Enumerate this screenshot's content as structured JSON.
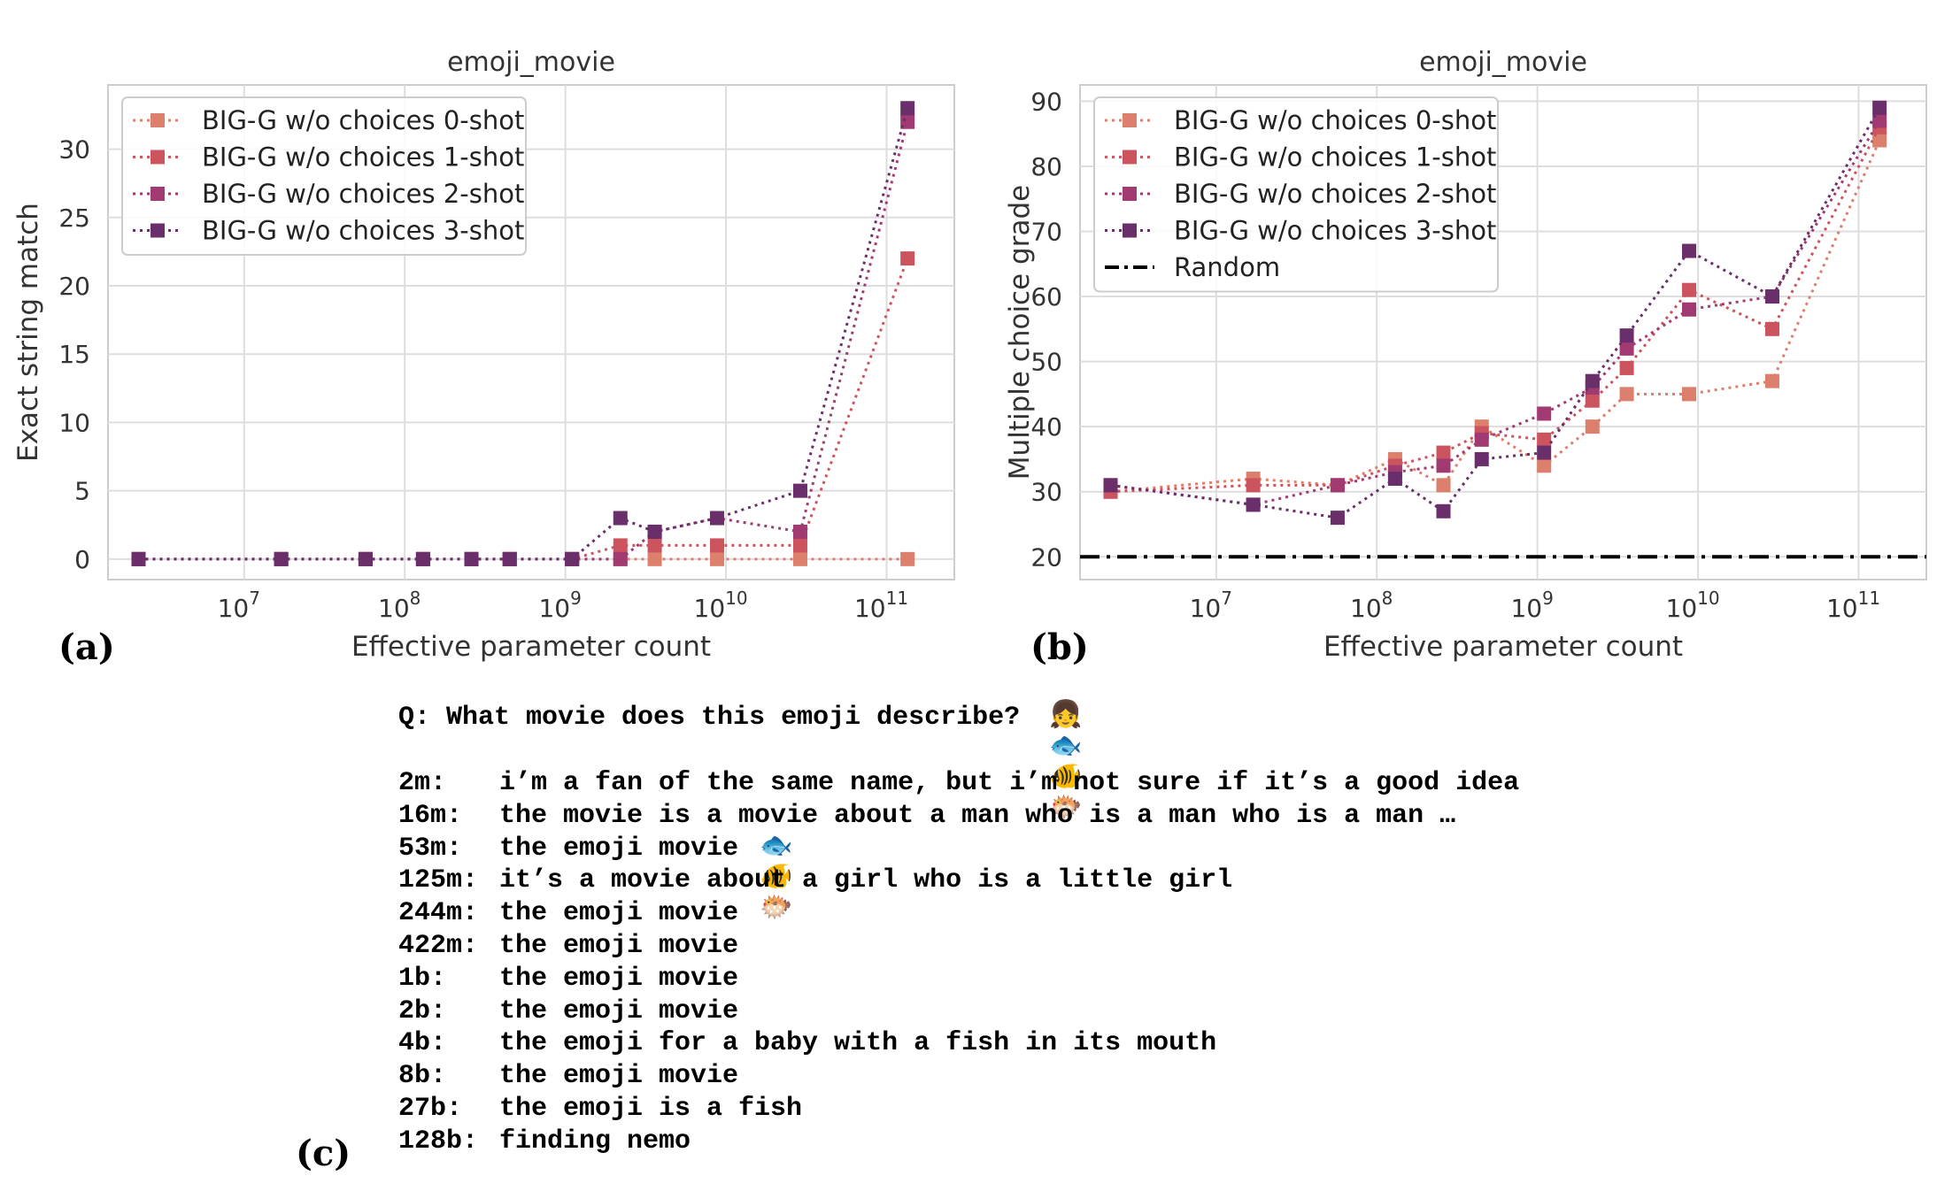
{
  "chart_data": [
    {
      "type": "line",
      "title": "emoji_movie",
      "xlabel": "Effective parameter count",
      "ylabel": "Exact string match",
      "xscale": "log",
      "ylim": [
        -1.5,
        34.7
      ],
      "yticks": [
        0,
        5,
        10,
        15,
        20,
        25,
        30
      ],
      "xticks": [
        {
          "value": 10000000.0,
          "base": "10",
          "exp": "7"
        },
        {
          "value": 100000000.0,
          "base": "10",
          "exp": "8"
        },
        {
          "value": 1000000000.0,
          "base": "10",
          "exp": "9"
        },
        {
          "value": 10000000000.0,
          "base": "10",
          "exp": "10"
        },
        {
          "value": 100000000000.0,
          "base": "10",
          "exp": "11"
        }
      ],
      "grid": true,
      "legend_position": "top-left",
      "series": [
        {
          "name": "BIG-G w/o choices 0-shot",
          "color": "#dc7f6c",
          "x": [
            2200000.0,
            17000000.0,
            57000000.0,
            130000000.0,
            260000000.0,
            450000000.0,
            1100000000.0,
            2200000000.0,
            3600000000.0,
            8800000000.0,
            29000000000.0,
            135000000000.0
          ],
          "y": [
            0,
            0,
            0,
            0,
            0,
            0,
            0,
            0,
            0,
            0,
            0,
            0
          ]
        },
        {
          "name": "BIG-G w/o choices 1-shot",
          "color": "#cc545f",
          "x": [
            2200000.0,
            17000000.0,
            57000000.0,
            130000000.0,
            260000000.0,
            450000000.0,
            1100000000.0,
            2200000000.0,
            3600000000.0,
            8800000000.0,
            29000000000.0,
            135000000000.0
          ],
          "y": [
            0,
            0,
            0,
            0,
            0,
            0,
            0,
            1,
            1,
            1,
            1,
            22
          ]
        },
        {
          "name": "BIG-G w/o choices 2-shot",
          "color": "#a23a72",
          "x": [
            2200000.0,
            17000000.0,
            57000000.0,
            130000000.0,
            260000000.0,
            450000000.0,
            1100000000.0,
            2200000000.0,
            3600000000.0,
            8800000000.0,
            29000000000.0,
            135000000000.0
          ],
          "y": [
            0,
            0,
            0,
            0,
            0,
            0,
            0,
            0,
            2,
            3,
            2,
            32
          ]
        },
        {
          "name": "BIG-G w/o choices 3-shot",
          "color": "#6a2e6b",
          "x": [
            2200000.0,
            17000000.0,
            57000000.0,
            130000000.0,
            260000000.0,
            450000000.0,
            1100000000.0,
            2200000000.0,
            3600000000.0,
            8800000000.0,
            29000000000.0,
            135000000000.0
          ],
          "y": [
            0,
            0,
            0,
            0,
            0,
            0,
            0,
            3,
            2,
            3,
            5,
            33
          ]
        }
      ],
      "panel_label": "(a)"
    },
    {
      "type": "line",
      "title": "emoji_movie",
      "xlabel": "Effective parameter count",
      "ylabel": "Multiple choice grade",
      "xscale": "log",
      "ylim": [
        16.5,
        92.5
      ],
      "yticks": [
        20,
        30,
        40,
        50,
        60,
        70,
        80,
        90
      ],
      "xticks": [
        {
          "value": 10000000.0,
          "base": "10",
          "exp": "7"
        },
        {
          "value": 100000000.0,
          "base": "10",
          "exp": "8"
        },
        {
          "value": 1000000000.0,
          "base": "10",
          "exp": "9"
        },
        {
          "value": 10000000000.0,
          "base": "10",
          "exp": "10"
        },
        {
          "value": 100000000000.0,
          "base": "10",
          "exp": "11"
        }
      ],
      "grid": true,
      "legend_position": "top-left",
      "random_baseline": {
        "name": "Random",
        "y": 20,
        "color": "#000000"
      },
      "series": [
        {
          "name": "BIG-G w/o choices 0-shot",
          "color": "#dc7f6c",
          "x": [
            2200000.0,
            17000000.0,
            57000000.0,
            130000000.0,
            260000000.0,
            450000000.0,
            1100000000.0,
            2200000000.0,
            3600000000.0,
            8800000000.0,
            29000000000.0,
            135000000000.0
          ],
          "y": [
            30,
            32,
            31,
            35,
            31,
            40,
            34,
            40,
            45,
            45,
            47,
            84
          ]
        },
        {
          "name": "BIG-G w/o choices 1-shot",
          "color": "#cc545f",
          "x": [
            2200000.0,
            17000000.0,
            57000000.0,
            130000000.0,
            260000000.0,
            450000000.0,
            1100000000.0,
            2200000000.0,
            3600000000.0,
            8800000000.0,
            29000000000.0,
            135000000000.0
          ],
          "y": [
            30,
            31,
            31,
            34,
            36,
            39,
            38,
            44,
            49,
            61,
            55,
            86
          ]
        },
        {
          "name": "BIG-G w/o choices 2-shot",
          "color": "#a23a72",
          "x": [
            2200000.0,
            17000000.0,
            57000000.0,
            130000000.0,
            260000000.0,
            450000000.0,
            1100000000.0,
            2200000000.0,
            3600000000.0,
            8800000000.0,
            29000000000.0,
            135000000000.0
          ],
          "y": [
            31,
            28,
            31,
            33,
            34,
            38,
            42,
            46,
            52,
            58,
            60,
            87
          ]
        },
        {
          "name": "BIG-G w/o choices 3-shot",
          "color": "#6a2e6b",
          "x": [
            2200000.0,
            17000000.0,
            57000000.0,
            130000000.0,
            260000000.0,
            450000000.0,
            1100000000.0,
            2200000000.0,
            3600000000.0,
            8800000000.0,
            29000000000.0,
            135000000000.0
          ],
          "y": [
            31,
            28,
            26,
            32,
            27,
            35,
            36,
            47,
            54,
            67,
            60,
            89
          ]
        }
      ],
      "panel_label": "(b)"
    }
  ],
  "panel_c": {
    "label": "(c)",
    "question": "Q: What movie does this emoji describe?",
    "question_emoji": "👧🐟🐠🐡",
    "answers": [
      {
        "size": "2m:",
        "text": "i’m a fan of the same name, but i’m not sure if it’s a good idea",
        "emoji": ""
      },
      {
        "size": "16m:",
        "text": "the movie is a movie about a man who is a man who is a man …",
        "emoji": ""
      },
      {
        "size": "53m:",
        "text": "the emoji movie",
        "emoji": "🐟🐠🐡"
      },
      {
        "size": "125m:",
        "text": "it’s a movie about a girl who is a little girl",
        "emoji": ""
      },
      {
        "size": "244m:",
        "text": "the emoji movie",
        "emoji": ""
      },
      {
        "size": "422m:",
        "text": "the emoji movie",
        "emoji": ""
      },
      {
        "size": "1b:",
        "text": "the emoji movie",
        "emoji": ""
      },
      {
        "size": "2b:",
        "text": "the emoji movie",
        "emoji": ""
      },
      {
        "size": "4b:",
        "text": "the emoji for a baby with a fish in its mouth",
        "emoji": ""
      },
      {
        "size": "8b:",
        "text": "the emoji movie",
        "emoji": ""
      },
      {
        "size": "27b:",
        "text": "the emoji is a fish",
        "emoji": ""
      },
      {
        "size": "128b:",
        "text": "finding nemo",
        "emoji": ""
      }
    ]
  }
}
